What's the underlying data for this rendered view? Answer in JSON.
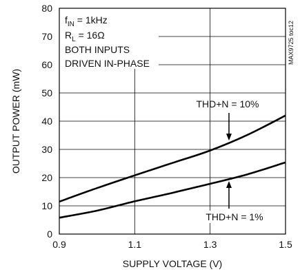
{
  "chart_data": {
    "type": "line",
    "xlabel": "SUPPLY VOLTAGE (V)",
    "ylabel": "OUTPUT POWER (mW)",
    "xlim": [
      0.9,
      1.5
    ],
    "ylim": [
      0,
      80
    ],
    "x_ticks": [
      "0.9",
      "1.1",
      "1.3",
      "1.5"
    ],
    "y_ticks": [
      "0",
      "10",
      "20",
      "30",
      "40",
      "50",
      "60",
      "70",
      "80"
    ],
    "grid": true,
    "conditions": {
      "line1_main": "f",
      "line1_sub": "IN",
      "line1_rest": " = 1kHz",
      "line2_main": "R",
      "line2_sub": "L",
      "line2_rest": " = 16Ω",
      "line3": "BOTH INPUTS",
      "line4": "DRIVEN IN-PHASE"
    },
    "side_label": "MAX9725 toc12",
    "series": [
      {
        "name": "THD+N = 10%",
        "x": [
          0.9,
          1.0,
          1.1,
          1.2,
          1.3,
          1.4,
          1.5
        ],
        "y": [
          11.5,
          16.3,
          20.8,
          25.2,
          29.6,
          35.2,
          42.0
        ]
      },
      {
        "name": "THD+N = 1%",
        "x": [
          0.9,
          1.0,
          1.1,
          1.2,
          1.3,
          1.4,
          1.5
        ],
        "y": [
          5.8,
          8.3,
          11.6,
          14.6,
          17.8,
          21.2,
          25.4
        ]
      }
    ]
  }
}
